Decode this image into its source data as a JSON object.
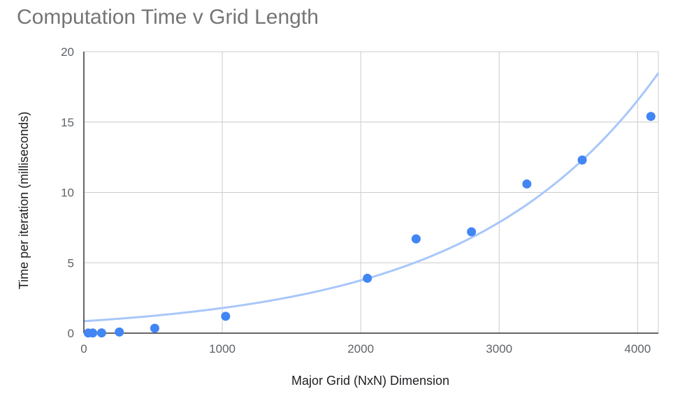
{
  "chart_data": {
    "type": "scatter",
    "title": "Computation Time v Grid Length",
    "xlabel": "Major Grid (NxN) Dimension",
    "ylabel": "Time per iteration (milliseconds)",
    "xlim": [
      0,
      4150
    ],
    "ylim": [
      0,
      20
    ],
    "xticks": [
      0,
      1000,
      2000,
      3000,
      4000
    ],
    "yticks": [
      0,
      5,
      10,
      15,
      20
    ],
    "grid": true,
    "legend": "none",
    "colors": {
      "points": "#4285f4",
      "trendline": "#a8c7fa",
      "grid": "#cccccc",
      "axis": "#333333"
    },
    "series": [
      {
        "points": [
          {
            "x": 32,
            "y": 0.01
          },
          {
            "x": 64,
            "y": 0.01
          },
          {
            "x": 128,
            "y": 0.02
          },
          {
            "x": 256,
            "y": 0.08
          },
          {
            "x": 512,
            "y": 0.35
          },
          {
            "x": 1024,
            "y": 1.2
          },
          {
            "x": 2048,
            "y": 3.9
          },
          {
            "x": 2400,
            "y": 6.7
          },
          {
            "x": 2800,
            "y": 7.2
          },
          {
            "x": 3200,
            "y": 10.6
          },
          {
            "x": 3600,
            "y": 12.3
          },
          {
            "x": 4096,
            "y": 15.4
          }
        ]
      }
    ],
    "trendline": {
      "type": "exponential",
      "a": 0.85,
      "b": 0.000742,
      "x_range": [
        0,
        4150
      ]
    }
  }
}
